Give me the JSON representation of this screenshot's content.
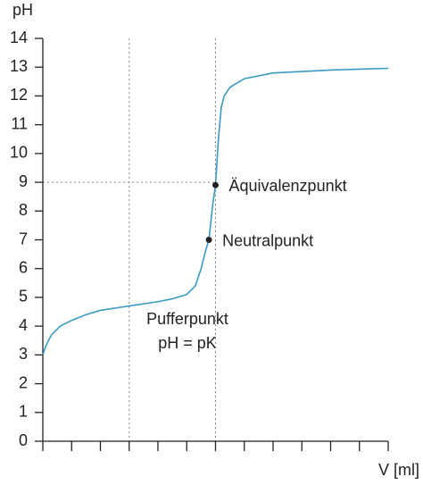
{
  "chart_data": {
    "type": "line",
    "y_label": "pH",
    "x_label": "V [ml]",
    "xlim": [
      0,
      12
    ],
    "xticks": [
      0,
      1,
      2,
      3,
      4,
      5,
      6,
      7,
      8,
      9,
      10,
      11,
      12
    ],
    "ylim": [
      0,
      14
    ],
    "yticks": [
      0,
      1,
      2,
      3,
      4,
      5,
      6,
      7,
      8,
      9,
      10,
      11,
      12,
      13,
      14
    ],
    "x": [
      0,
      0.1,
      0.3,
      0.6,
      1,
      1.5,
      2,
      3,
      4,
      4.5,
      5,
      5.3,
      5.5,
      5.65,
      5.77,
      5.9,
      6.0,
      6.1,
      6.2,
      6.3,
      6.5,
      7,
      8,
      9,
      10,
      11,
      12
    ],
    "series": [
      {
        "color": "#3a9ac4",
        "values": [
          3,
          3.3,
          3.7,
          4.0,
          4.2,
          4.4,
          4.55,
          4.7,
          4.85,
          4.95,
          5.1,
          5.4,
          6.0,
          6.6,
          7.0,
          8.2,
          8.9,
          10.5,
          11.6,
          12.0,
          12.3,
          12.6,
          12.8,
          12.85,
          12.9,
          12.93,
          12.96
        ]
      }
    ],
    "guides": {
      "vertical": [
        3,
        6
      ],
      "horizontal": {
        "y": 9,
        "x_to": 6
      }
    },
    "points": [
      {
        "label": "Äquivalenzpunkt",
        "x": 6,
        "y": 8.9
      },
      {
        "label": "Neutralpunkt",
        "x": 5.77,
        "y": 7.0
      }
    ],
    "annotation": [
      "Pufferpunkt",
      "pH = pK"
    ]
  }
}
